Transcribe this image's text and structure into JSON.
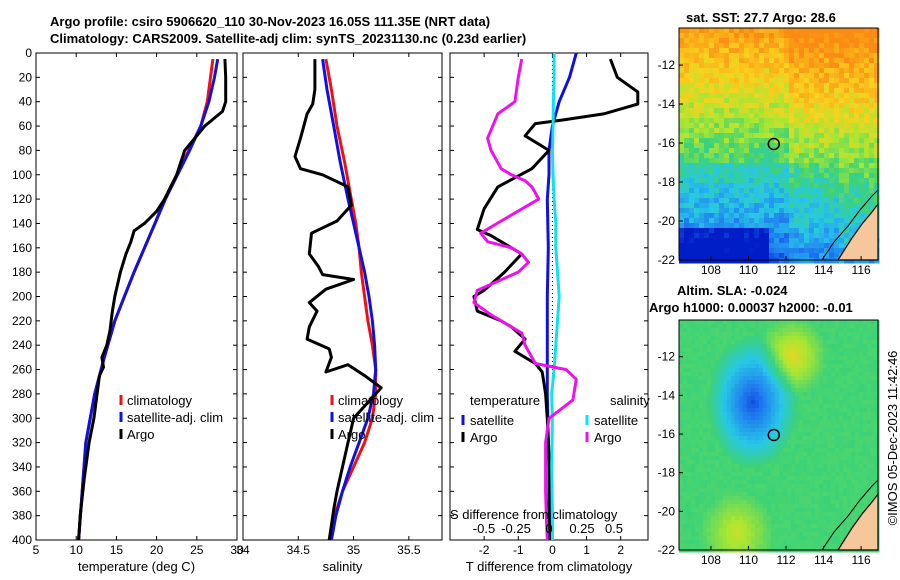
{
  "header": {
    "line1": "Argo profile: csiro 5906620_110 30-Nov-2023 16.05S 111.35E (NRT data)",
    "line2": "Climatology: CARS2009. Satellite-adj clim: synTS_20231130.nc (0.23d earlier)"
  },
  "stamp": "©IMOS 05-Dec-2023 11:42:46",
  "colors": {
    "climatology": "#ee1111",
    "satellite": "#1111dd",
    "argo": "#000000",
    "magenta": "#ee11ee",
    "cyan": "#11e0ee"
  },
  "chart_data": [
    {
      "type": "line",
      "name": "temperature",
      "xlabel": "temperature (deg C)",
      "ylabel": "",
      "xlim": [
        5,
        30
      ],
      "ylim": [
        400,
        0
      ],
      "xticks": [
        5,
        10,
        15,
        20,
        25,
        30
      ],
      "yticks": [
        0,
        20,
        40,
        60,
        80,
        100,
        120,
        140,
        160,
        180,
        200,
        220,
        240,
        260,
        280,
        300,
        320,
        340,
        360,
        380,
        400
      ],
      "legend": [
        "climatology",
        "satellite-adj. clim",
        "Argo"
      ],
      "series": [
        {
          "name": "climatology",
          "color": "#ee1111",
          "x": [
            27,
            26.7,
            26.3,
            25.5,
            24,
            22.5,
            21,
            19.8,
            18.5,
            17.2,
            16,
            14.8,
            13.5,
            12.3,
            11.2,
            10.3
          ],
          "y": [
            5,
            20,
            40,
            60,
            80,
            100,
            120,
            140,
            160,
            180,
            200,
            220,
            250,
            280,
            320,
            400
          ]
        },
        {
          "name": "satellite-adj. clim",
          "color": "#1111dd",
          "x": [
            27.6,
            27.2,
            26.5,
            25.5,
            24.1,
            22.6,
            21.1,
            19.8,
            18.5,
            17.2,
            16,
            14.8,
            13.5,
            12.3,
            11.2,
            10.3
          ],
          "y": [
            5,
            20,
            40,
            60,
            80,
            100,
            120,
            140,
            160,
            180,
            200,
            220,
            250,
            280,
            320,
            400
          ]
        },
        {
          "name": "Argo",
          "color": "#000000",
          "x": [
            28.5,
            28.6,
            28.6,
            28.2,
            26,
            25,
            23.5,
            22.5,
            21,
            20,
            18.5,
            17.2,
            16.8,
            16.2,
            15.5,
            14.8,
            14.5,
            14.2,
            13.8,
            13.2,
            13.4,
            12.9,
            12.6,
            12.2,
            11.6,
            11,
            10.5,
            10.3
          ],
          "y": [
            5,
            20,
            40,
            48,
            60,
            68,
            80,
            100,
            120,
            130,
            140,
            146,
            155,
            165,
            180,
            200,
            212,
            228,
            240,
            250,
            258,
            265,
            280,
            300,
            320,
            350,
            380,
            400
          ]
        }
      ]
    },
    {
      "type": "line",
      "name": "salinity",
      "xlabel": "salinity",
      "ylabel": "",
      "xlim": [
        34,
        35.8
      ],
      "ylim": [
        400,
        0
      ],
      "xticks": [
        34,
        34.5,
        35,
        35.5
      ],
      "legend": [
        "climatology",
        "satellite-adj. clim",
        "Argo"
      ],
      "series": [
        {
          "name": "climatology",
          "color": "#ee1111",
          "x": [
            34.75,
            34.8,
            34.85,
            34.92,
            34.98,
            35.02,
            35.05,
            35.07,
            35.1,
            35.13,
            35.17,
            35.2,
            35.2,
            35.17,
            35.1,
            35,
            34.9,
            34.83,
            34.8
          ],
          "y": [
            5,
            30,
            60,
            90,
            120,
            140,
            160,
            180,
            200,
            220,
            240,
            260,
            280,
            300,
            320,
            340,
            360,
            380,
            400
          ]
        },
        {
          "name": "satellite-adj. clim",
          "color": "#1111dd",
          "x": [
            34.72,
            34.76,
            34.82,
            34.88,
            34.95,
            35,
            35.05,
            35.1,
            35.14,
            35.17,
            35.19,
            35.2,
            35.18,
            35.13,
            35.05,
            34.97,
            34.9,
            34.84,
            34.8
          ],
          "y": [
            5,
            30,
            60,
            90,
            120,
            140,
            160,
            180,
            200,
            220,
            240,
            260,
            280,
            300,
            320,
            340,
            360,
            380,
            400
          ]
        },
        {
          "name": "Argo",
          "color": "#000000",
          "x": [
            34.65,
            34.65,
            34.63,
            34.58,
            34.52,
            34.47,
            34.52,
            34.72,
            34.95,
            34.98,
            34.85,
            34.62,
            34.6,
            34.68,
            34.72,
            35,
            34.75,
            34.6,
            34.67,
            34.6,
            34.58,
            34.78,
            34.8,
            34.75,
            34.95,
            35.1,
            35.25,
            35,
            34.95,
            34.9,
            34.85,
            34.82,
            34.8,
            34.78
          ],
          "y": [
            5,
            30,
            42,
            50,
            70,
            85,
            95,
            100,
            110,
            125,
            138,
            148,
            165,
            175,
            182,
            186,
            194,
            205,
            212,
            225,
            235,
            243,
            250,
            262,
            256,
            265,
            275,
            300,
            320,
            340,
            360,
            375,
            388,
            400
          ]
        }
      ]
    },
    {
      "type": "line",
      "name": "differences",
      "xlabel": "T difference from climatology",
      "ylabel": "",
      "xlim": [
        -3,
        2.8
      ],
      "ylim": [
        400,
        0
      ],
      "xticks": [
        -2,
        -1,
        0,
        1,
        2
      ],
      "secondary_axis": {
        "label": "S difference from climatology",
        "ticks": [
          "-0.5",
          "-0.25",
          "0",
          "0.25",
          "0.5"
        ]
      },
      "legend_groups": [
        {
          "title": "temperature",
          "items": [
            "satellite",
            "Argo"
          ]
        },
        {
          "title": "salinity",
          "items": [
            "satellite",
            "Argo"
          ]
        }
      ],
      "series": [
        {
          "name": "T satellite",
          "color": "#1111dd",
          "x": [
            0.7,
            0.5,
            0.2,
            0,
            -0.1,
            -0.1,
            -0.15,
            -0.12,
            -0.15,
            -0.15,
            -0.15,
            -0.12,
            -0.1,
            -0.08,
            -0.05
          ],
          "y": [
            0,
            20,
            40,
            60,
            80,
            100,
            120,
            160,
            200,
            240,
            280,
            320,
            340,
            370,
            400
          ]
        },
        {
          "name": "T Argo",
          "color": "#000000",
          "x": [
            1.7,
            1.9,
            2.5,
            2.5,
            1.5,
            0.3,
            -0.5,
            -0.8,
            -0.1,
            -0.6,
            -1.6,
            -2,
            -2.2,
            -1.8,
            -1.5,
            -0.9,
            -1.4,
            -2,
            -2.3,
            -2.2,
            -1.5,
            -1.2,
            -0.8,
            -1.1,
            -0.5,
            -0.3,
            -0.2,
            -0.15,
            -0.1,
            -0.1,
            -0.08
          ],
          "y": [
            5,
            20,
            32,
            42,
            50,
            55,
            58,
            68,
            80,
            95,
            110,
            128,
            145,
            150,
            155,
            165,
            180,
            195,
            200,
            212,
            220,
            225,
            235,
            245,
            255,
            262,
            280,
            300,
            330,
            370,
            400
          ]
        },
        {
          "name": "S satellite",
          "color": "#11e0ee",
          "x": [
            0.05,
            0.05,
            0.03,
            0.02,
            0,
            0.02,
            0.05,
            0.1,
            0.1,
            0.15,
            0.2,
            0.15,
            0.05,
            -0.02,
            0,
            -0.02,
            0,
            0
          ],
          "y": [
            0,
            20,
            40,
            60,
            80,
            100,
            120,
            140,
            160,
            180,
            200,
            220,
            260,
            280,
            300,
            340,
            380,
            400
          ]
        },
        {
          "name": "S Argo",
          "color": "#ee11ee",
          "x": [
            -0.9,
            -1,
            -1.1,
            -1.6,
            -1.9,
            -1.8,
            -1.5,
            -1.2,
            -0.8,
            -0.6,
            -0.4,
            -1.5,
            -2.1,
            -1.9,
            -1.2,
            -0.9,
            -0.7,
            -1,
            -2.2,
            -2.3,
            -1.8,
            -0.9,
            -0.8,
            -0.5,
            0.4,
            0.7,
            0.6,
            -0.1,
            -0.2,
            -0.2,
            -0.2,
            -0.18,
            -0.15
          ],
          "y": [
            5,
            20,
            40,
            50,
            70,
            80,
            95,
            100,
            105,
            110,
            120,
            138,
            148,
            155,
            160,
            165,
            172,
            180,
            195,
            205,
            215,
            230,
            240,
            255,
            260,
            268,
            285,
            300,
            320,
            340,
            360,
            380,
            400
          ]
        }
      ]
    },
    {
      "type": "heatmap",
      "name": "sat-sst",
      "title": "sat. SST: 27.7 Argo: 28.6",
      "xticks": [
        "108",
        "110",
        "112",
        "114",
        "116"
      ],
      "yticks": [
        "-12",
        "-14",
        "-16",
        "-18",
        "-20",
        "-22"
      ],
      "marker": {
        "lon": 111.35,
        "lat": -16.05
      }
    },
    {
      "type": "heatmap",
      "name": "altim-sla",
      "title": "Altim. SLA: -0.024",
      "subtitle": "Argo h1000: 0.00037 h2000: -0.01",
      "xticks": [
        "108",
        "110",
        "112",
        "114",
        "116"
      ],
      "yticks": [
        "-12",
        "-14",
        "-16",
        "-18",
        "-20",
        "-22"
      ],
      "marker": {
        "lon": 111.35,
        "lat": -16.05
      }
    }
  ]
}
